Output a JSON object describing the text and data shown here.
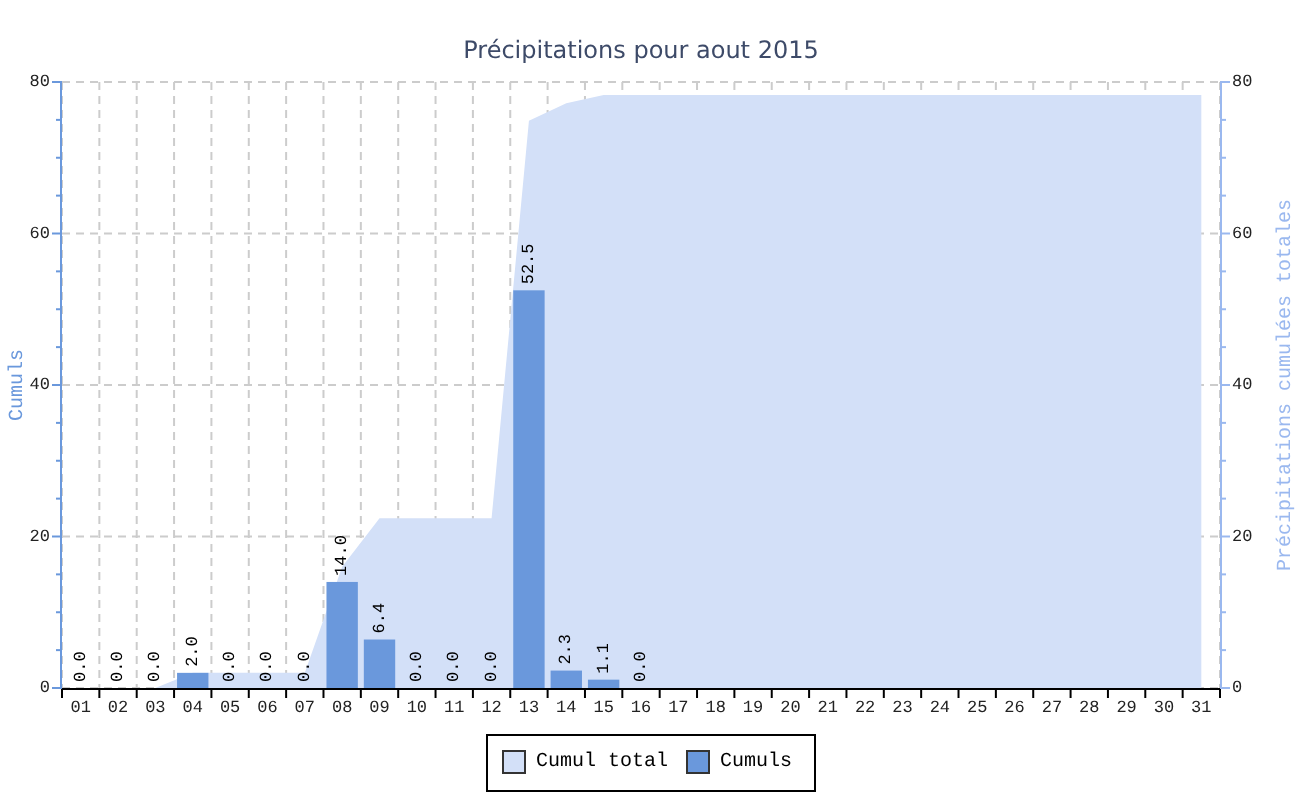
{
  "chart_data": {
    "type": "bar",
    "title": "Précipitations pour aout 2015",
    "ylabel": "Cumuls",
    "y2label": "Précipitations cumulées totales",
    "categories": [
      "01",
      "02",
      "03",
      "04",
      "05",
      "06",
      "07",
      "08",
      "09",
      "10",
      "11",
      "12",
      "13",
      "14",
      "15",
      "16",
      "17",
      "18",
      "19",
      "20",
      "21",
      "22",
      "23",
      "24",
      "25",
      "26",
      "27",
      "28",
      "29",
      "30",
      "31"
    ],
    "series": [
      {
        "name": "Cumul total",
        "type": "area",
        "axis": "y2",
        "color": "#d3e0f8",
        "values": [
          0,
          0,
          0,
          2,
          2,
          2,
          2,
          16,
          22.4,
          22.4,
          22.4,
          22.4,
          74.9,
          77.2,
          78.3,
          78.3,
          78.3,
          78.3,
          78.3,
          78.3,
          78.3,
          78.3,
          78.3,
          78.3,
          78.3,
          78.3,
          78.3,
          78.3,
          78.3,
          78.3,
          78.3
        ]
      },
      {
        "name": "Cumuls",
        "color": "#6a98dc",
        "values": [
          0,
          0,
          0,
          2,
          0,
          0,
          0,
          14,
          6.4,
          0,
          0,
          0,
          52.5,
          2.3,
          1.1,
          0,
          null,
          null,
          null,
          null,
          null,
          null,
          null,
          null,
          null,
          null,
          null,
          null,
          null,
          null,
          null
        ],
        "value_labels": [
          "0.0",
          "0.0",
          "0.0",
          "2.0",
          "0.0",
          "0.0",
          "0.0",
          "14.0",
          "6.4",
          "0.0",
          "0.0",
          "0.0",
          "52.5",
          "2.3",
          "1.1",
          "0.0",
          null,
          null,
          null,
          null,
          null,
          null,
          null,
          null,
          null,
          null,
          null,
          null,
          null,
          null,
          null
        ]
      }
    ],
    "ylim": [
      0,
      80
    ],
    "yticks": [
      0,
      {
        "value": 5,
        "label": null
      },
      {
        "value": 10,
        "label": null
      },
      {
        "value": 15,
        "label": null
      },
      20,
      {
        "value": 25,
        "label": null
      },
      {
        "value": 30,
        "label": null
      },
      {
        "value": 35,
        "label": null
      },
      40,
      {
        "value": 45,
        "label": null
      },
      {
        "value": 50,
        "label": null
      },
      {
        "value": 55,
        "label": null
      },
      60,
      {
        "value": 65,
        "label": null
      },
      {
        "value": 70,
        "label": null
      },
      {
        "value": 75,
        "label": null
      },
      80
    ],
    "y2lim": [
      0,
      80
    ],
    "y2ticks": [
      0,
      {
        "value": 5,
        "label": null
      },
      {
        "value": 10,
        "label": null
      },
      {
        "value": 15,
        "label": null
      },
      20,
      {
        "value": 25,
        "label": null
      },
      {
        "value": 30,
        "label": null
      },
      {
        "value": 35,
        "label": null
      },
      40,
      {
        "value": 45,
        "label": null
      },
      {
        "value": 50,
        "label": null
      },
      {
        "value": 55,
        "label": null
      },
      60,
      {
        "value": 65,
        "label": null
      },
      {
        "value": 70,
        "label": null
      },
      {
        "value": 75,
        "label": null
      },
      80
    ],
    "grid": true,
    "legend": "bottom"
  }
}
